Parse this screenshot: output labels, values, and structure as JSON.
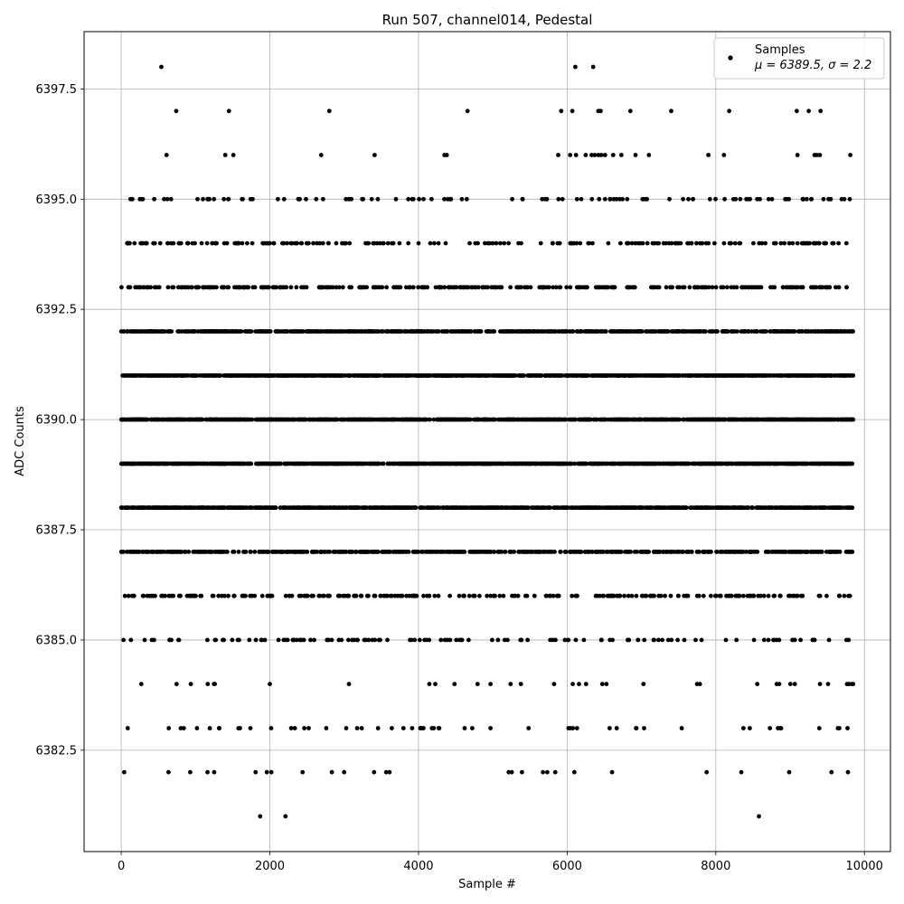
{
  "chart_data": {
    "type": "scatter",
    "title": "Run 507, channel014, Pedestal",
    "xlabel": "Sample #",
    "ylabel": "ADC Counts",
    "xlim": [
      -500,
      10350
    ],
    "ylim": [
      6380.2,
      6398.8
    ],
    "x_ticks": [
      0,
      2000,
      4000,
      6000,
      8000,
      10000
    ],
    "x_tick_labels": [
      "0",
      "2000",
      "4000",
      "6000",
      "8000",
      "10000"
    ],
    "y_ticks": [
      6382.5,
      6385.0,
      6387.5,
      6390.0,
      6392.5,
      6395.0,
      6397.5
    ],
    "y_tick_labels": [
      "6382.5",
      "6385.0",
      "6387.5",
      "6390.0",
      "6392.5",
      "6395.0",
      "6397.5"
    ],
    "grid": true,
    "legend_position": "top-right",
    "marker_color": "#000000",
    "series": [
      {
        "name": "Samples",
        "legend_stats": "μ = 6389.5, σ = 2.2",
        "mu": 6389.5,
        "sigma": 2.2,
        "x_range": [
          0,
          9850
        ],
        "points": [
          [
            540,
            6398
          ],
          [
            6110,
            6398
          ],
          [
            6350,
            6398
          ],
          [
            740,
            6397
          ],
          [
            1450,
            6397
          ],
          [
            2800,
            6397
          ],
          [
            4660,
            6397
          ],
          [
            5920,
            6397
          ],
          [
            6070,
            6397
          ],
          [
            6420,
            6397
          ],
          [
            6450,
            6397
          ],
          [
            6850,
            6397
          ],
          [
            7400,
            6397
          ],
          [
            8180,
            6397
          ],
          [
            9090,
            6397
          ],
          [
            9250,
            6397
          ],
          [
            9410,
            6397
          ],
          [
            610,
            6396
          ],
          [
            1400,
            6396
          ],
          [
            1510,
            6396
          ],
          [
            2690,
            6396
          ],
          [
            3410,
            6396
          ],
          [
            4350,
            6396
          ],
          [
            4380,
            6396
          ],
          [
            5880,
            6396
          ],
          [
            6040,
            6396
          ],
          [
            6120,
            6396
          ],
          [
            6250,
            6396
          ],
          [
            6330,
            6396
          ],
          [
            6370,
            6396
          ],
          [
            6420,
            6396
          ],
          [
            6460,
            6396
          ],
          [
            6510,
            6396
          ],
          [
            6620,
            6396
          ],
          [
            6730,
            6396
          ],
          [
            6920,
            6396
          ],
          [
            7100,
            6396
          ],
          [
            7900,
            6396
          ],
          [
            8110,
            6396
          ],
          [
            9100,
            6396
          ],
          [
            9330,
            6396
          ],
          [
            9360,
            6396
          ],
          [
            9400,
            6396
          ],
          [
            9810,
            6396
          ],
          [
            8580,
            6381
          ],
          [
            1870,
            6381
          ],
          [
            2210,
            6381
          ],
          [
            40,
            6382
          ],
          [
            1250,
            6382
          ],
          [
            1960,
            6382
          ],
          [
            2020,
            6382
          ],
          [
            2440,
            6382
          ],
          [
            3000,
            6382
          ],
          [
            3610,
            6382
          ]
        ],
        "dense_levels": [
          6382,
          6383,
          6384,
          6385,
          6386,
          6387,
          6388,
          6389,
          6390,
          6391,
          6392,
          6393,
          6394,
          6395
        ],
        "dense_level_counts": [
          20,
          55,
          35,
          130,
          260,
          600,
          1100,
          1200,
          1150,
          1100,
          800,
          350,
          200,
          110
        ]
      }
    ]
  }
}
